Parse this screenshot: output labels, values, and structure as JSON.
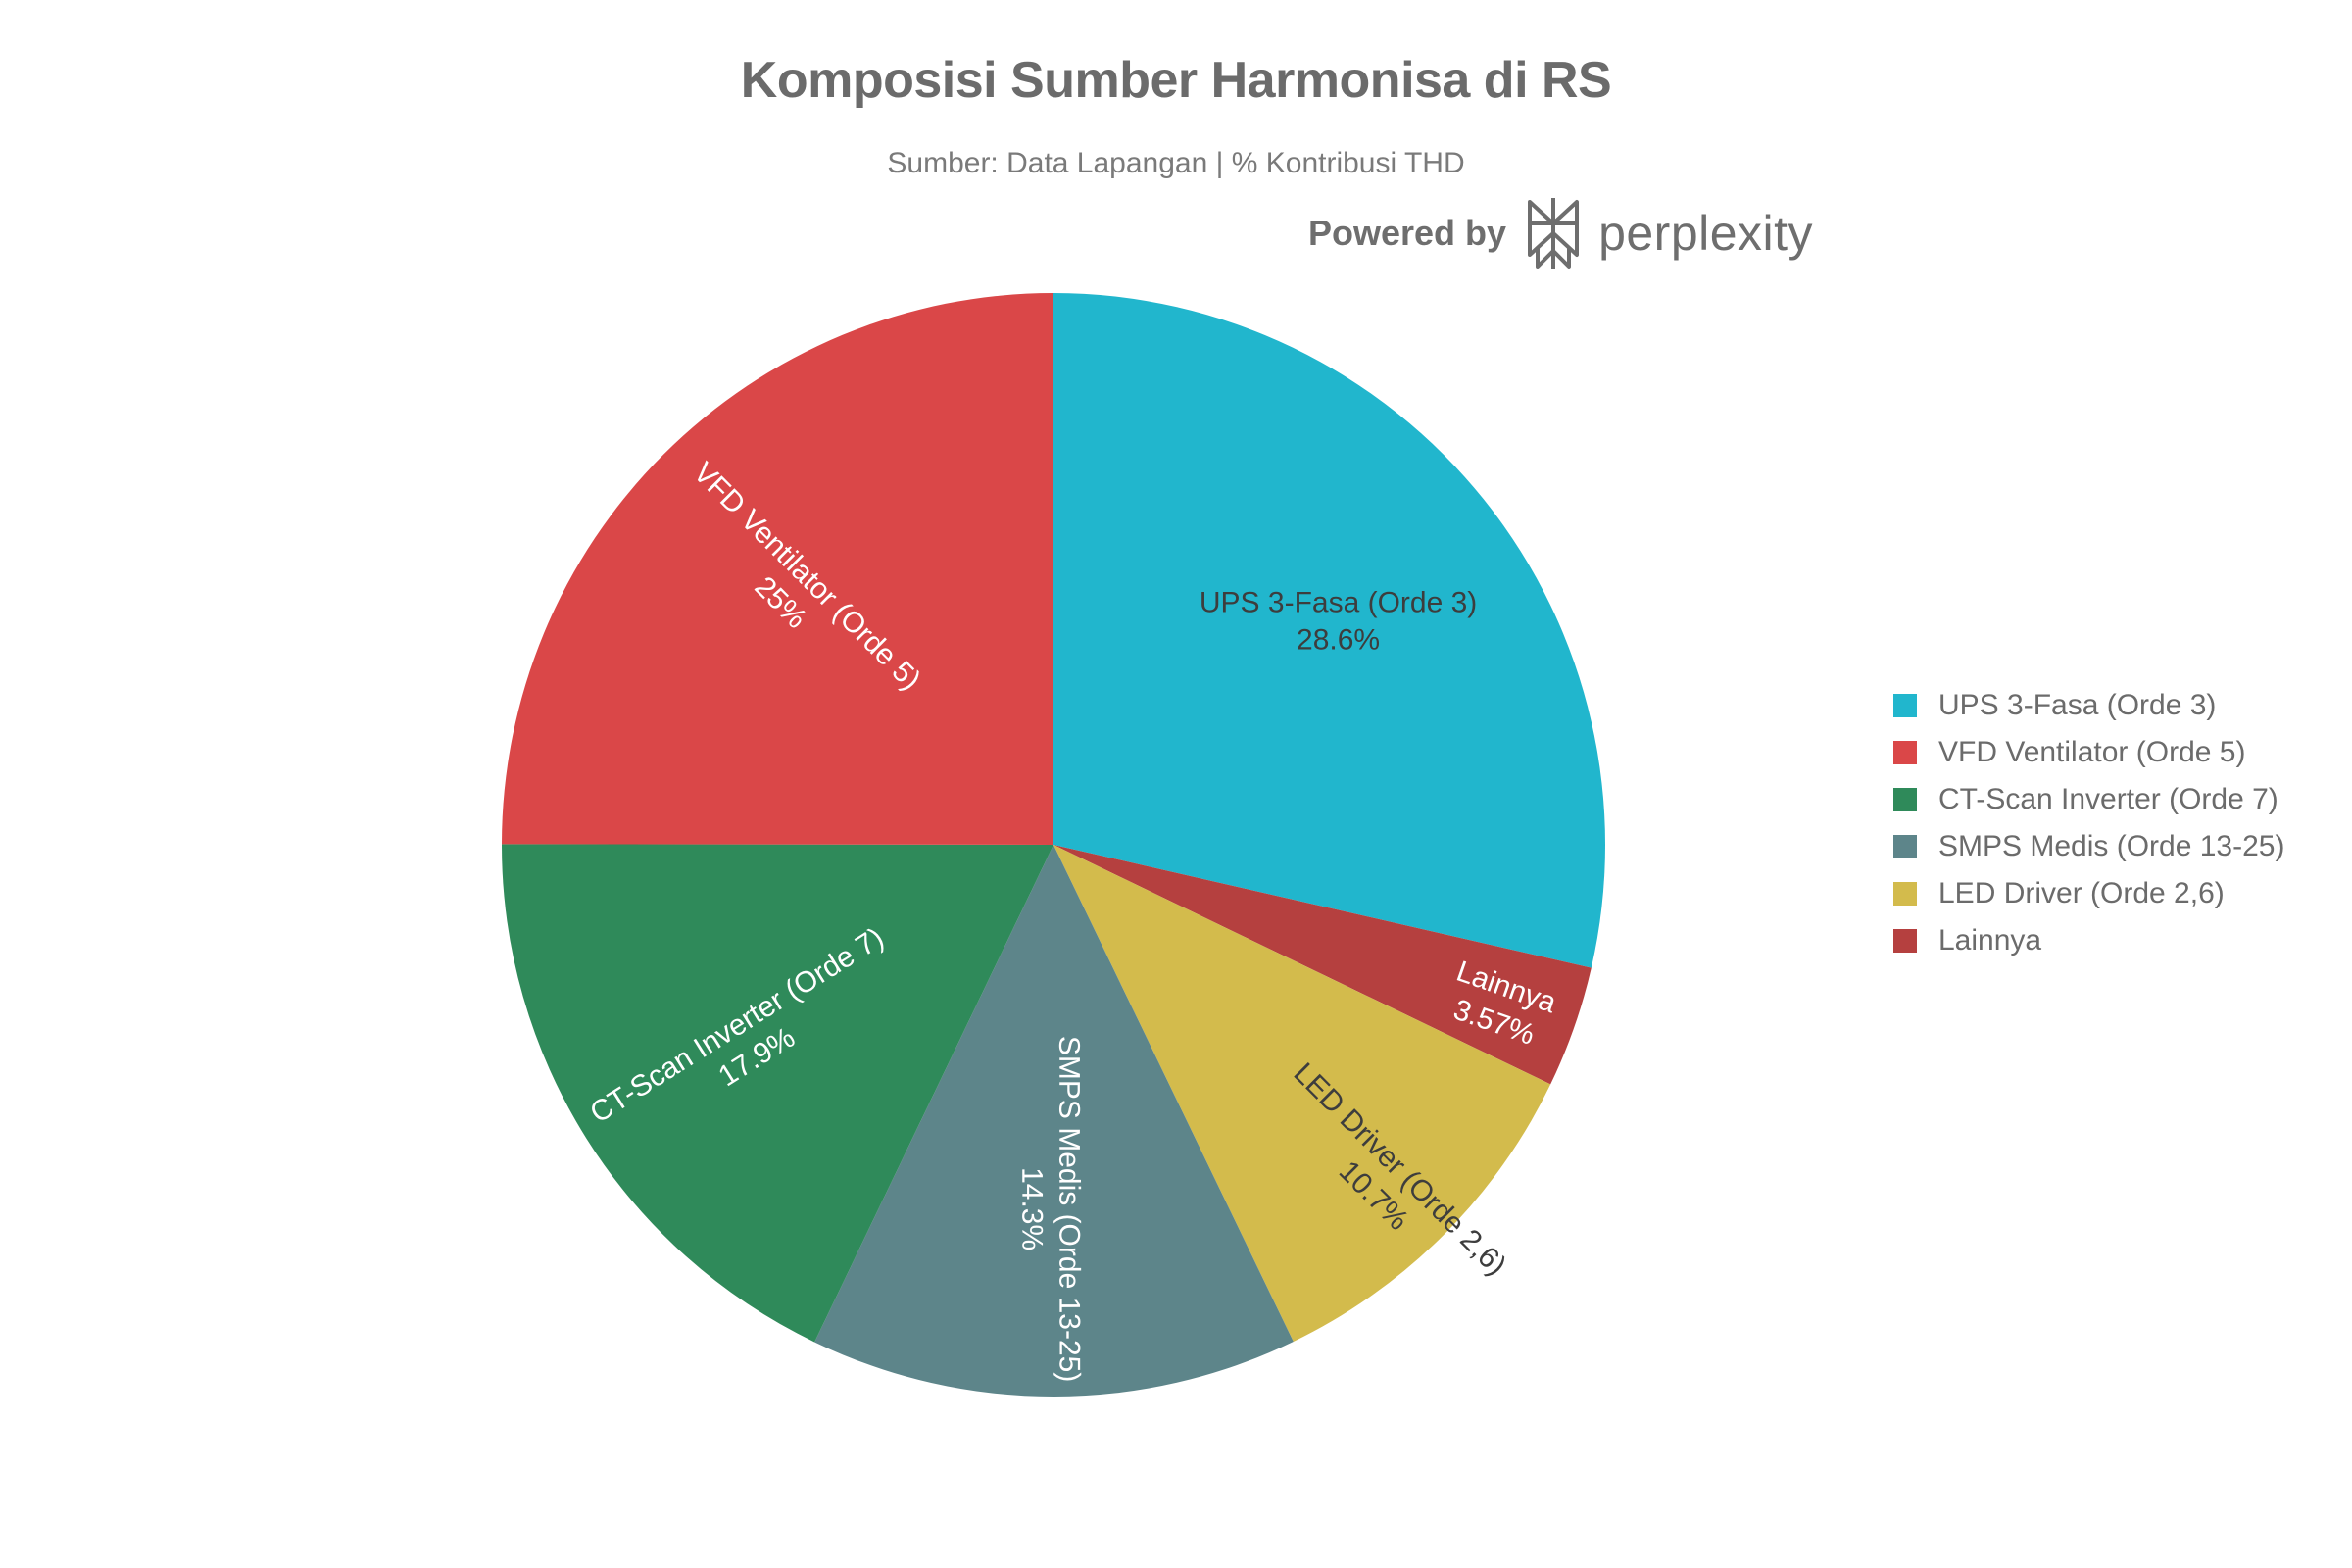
{
  "chart_data": {
    "type": "pie",
    "title": "Komposisi Sumber Harmonisa di RS",
    "subtitle": "Sumber: Data Lapangan | % Kontribusi THD",
    "slices": [
      {
        "name": "UPS 3-Fasa (Orde 3)",
        "value": 28.6,
        "value_label": "28.6%",
        "color": "#21b6cd",
        "label_color": "#3d3d3d"
      },
      {
        "name": "Lainnya",
        "value": 3.57,
        "value_label": "3.57%",
        "color": "#b5403f",
        "label_color": "#ffffff"
      },
      {
        "name": "LED Driver (Orde 2,6)",
        "value": 10.7,
        "value_label": "10.7%",
        "color": "#d3bb4c",
        "label_color": "#3d3d3d"
      },
      {
        "name": "SMPS Medis (Orde 13-25)",
        "value": 14.3,
        "value_label": "14.3%",
        "color": "#5d858a",
        "label_color": "#ffffff"
      },
      {
        "name": "CT-Scan Inverter (Orde 7)",
        "value": 17.9,
        "value_label": "17.9%",
        "color": "#2f8a5a",
        "label_color": "#ffffff"
      },
      {
        "name": "VFD Ventilator (Orde 5)",
        "value": 25,
        "value_label": "25%",
        "color": "#da4748",
        "label_color": "#ffffff"
      }
    ],
    "legend": [
      {
        "label": "UPS 3-Fasa (Orde 3)",
        "color": "#21b6cd"
      },
      {
        "label": "VFD Ventilator (Orde 5)",
        "color": "#da4748"
      },
      {
        "label": "CT-Scan Inverter (Orde 7)",
        "color": "#2f8a5a"
      },
      {
        "label": "SMPS Medis (Orde 13-25)",
        "color": "#5d858a"
      },
      {
        "label": "LED Driver (Orde 2,6)",
        "color": "#d3bb4c"
      },
      {
        "label": "Lainnya",
        "color": "#b5403f"
      }
    ],
    "legend_position": "right",
    "direction": "clockwise",
    "start": "top"
  },
  "branding": {
    "prefix": "Powered by",
    "name": "perplexity",
    "logo_icon": "perplexity-logo-icon"
  }
}
